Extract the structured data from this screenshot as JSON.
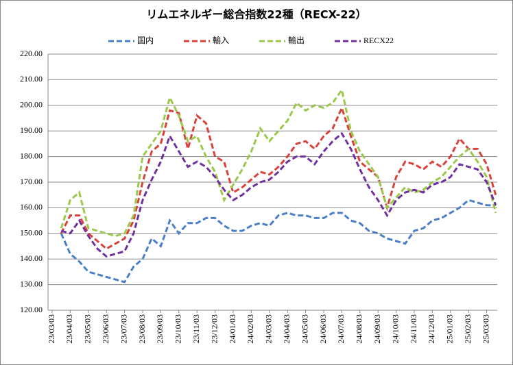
{
  "chart_data": {
    "type": "line",
    "title": "リムエネルギー総合指数22種（RECX-22）",
    "categories": [
      "23/03/03",
      null,
      "23/04/03",
      null,
      "23/05/03",
      null,
      "23/06/03",
      null,
      "23/07/03",
      null,
      "23/08/03",
      null,
      "23/09/03",
      null,
      "23/10/03",
      null,
      "23/11/03",
      null,
      "23/12/03",
      null,
      "24/01/03",
      null,
      "24/02/03",
      null,
      "24/03/03",
      null,
      "24/04/03",
      null,
      "24/05/03",
      null,
      "24/06/03",
      null,
      "24/07/03",
      null,
      "24/08/03",
      null,
      "24/09/03",
      null,
      "24/10/03",
      null,
      "24/11/03",
      null,
      "24/12/03",
      null,
      "25/01/03",
      null,
      "25/02/03",
      null,
      "25/03/03",
      null
    ],
    "series": [
      {
        "name": "国内",
        "color": "#4a7ec8",
        "values": [
          null,
          150,
          142,
          139,
          135,
          134,
          133,
          132,
          131,
          137,
          140,
          148,
          145,
          155,
          150,
          154,
          154,
          156,
          156,
          153,
          151,
          151,
          153,
          154,
          153,
          157,
          158,
          157,
          157,
          156,
          156,
          158,
          158,
          155,
          154,
          151,
          150,
          148,
          147,
          146,
          151,
          152,
          155,
          156,
          158,
          160,
          163,
          162,
          161,
          161
        ]
      },
      {
        "name": "輸入",
        "color": "#d9413a",
        "values": [
          null,
          150,
          157,
          157,
          150,
          147,
          144,
          146,
          148,
          155,
          170,
          182,
          185,
          198,
          197,
          183,
          196,
          193,
          180,
          178,
          166,
          168,
          171,
          174,
          173,
          176,
          180,
          185,
          186,
          183,
          188,
          191,
          199,
          188,
          178,
          175,
          172,
          160,
          172,
          178,
          177,
          175,
          178,
          176,
          180,
          187,
          183,
          183,
          177,
          165
        ]
      },
      {
        "name": "輸出",
        "color": "#9bc84a",
        "values": [
          null,
          152,
          163,
          166,
          152,
          151,
          150,
          149,
          150,
          157,
          180,
          185,
          190,
          203,
          196,
          186,
          188,
          180,
          174,
          163,
          169,
          175,
          182,
          191,
          186,
          190,
          194,
          201,
          198,
          200,
          199,
          201,
          206,
          190,
          182,
          177,
          172,
          160,
          164,
          168,
          166,
          167,
          170,
          172,
          176,
          180,
          183,
          178,
          172,
          158
        ]
      },
      {
        "name": "RECX22",
        "color": "#7030a0",
        "values": [
          null,
          151,
          150,
          155,
          149,
          144,
          141,
          142,
          143,
          150,
          163,
          171,
          178,
          188,
          182,
          176,
          178,
          176,
          172,
          167,
          163,
          165,
          168,
          170,
          171,
          174,
          178,
          180,
          180,
          177,
          182,
          186,
          189,
          183,
          175,
          168,
          163,
          157,
          163,
          166,
          167,
          166,
          169,
          170,
          172,
          177,
          176,
          175,
          170,
          161
        ]
      }
    ],
    "ylim": [
      120,
      220
    ],
    "yticks": [
      {
        "value": 120,
        "label": "120.00"
      },
      {
        "value": 130,
        "label": "130.00"
      },
      {
        "value": 140,
        "label": "140.00"
      },
      {
        "value": 150,
        "label": "150.00"
      },
      {
        "value": 160,
        "label": "160.00"
      },
      {
        "value": 170,
        "label": "170.00"
      },
      {
        "value": 180,
        "label": "180.00"
      },
      {
        "value": 190,
        "label": "190.00"
      },
      {
        "value": 200,
        "label": "200.00"
      },
      {
        "value": 210,
        "label": "210.00"
      },
      {
        "value": 220,
        "label": "220.00"
      }
    ],
    "grid": true,
    "legend": "top"
  }
}
